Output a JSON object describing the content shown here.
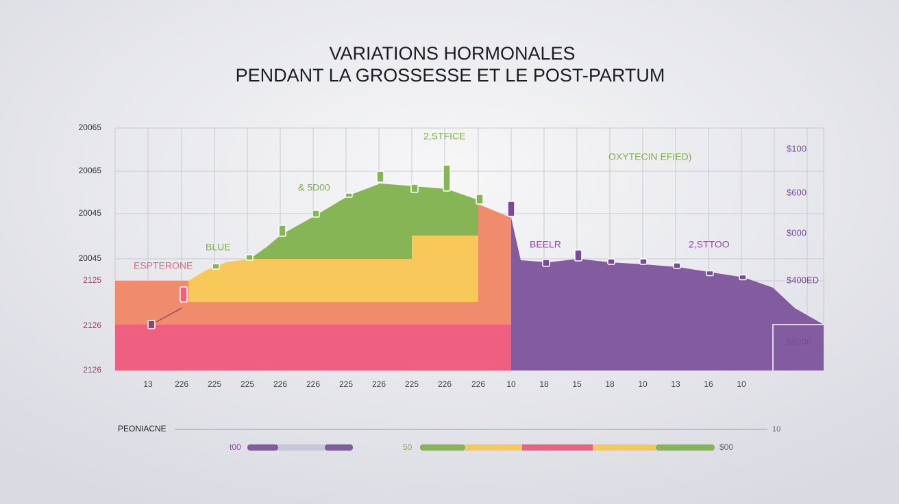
{
  "title": [
    "VARIATIONS HORMONALES",
    "PENDANT LA GROSSESSE ET LE POST-PARTUM"
  ],
  "left_labels": [
    "20065",
    "20065",
    "20045",
    "20045",
    "2125",
    "2126",
    "2126"
  ],
  "right_labels": [
    "$100",
    "$600",
    "$000",
    "$400ED",
    "$9000"
  ],
  "bottom_labels": [
    "13",
    "226",
    "225",
    "225",
    "226",
    "226",
    "225",
    "226",
    "225",
    "226",
    "226",
    "10",
    "18",
    "15",
    "18",
    "10",
    "13",
    "16",
    "10"
  ],
  "annotations": [
    "ESPTERONE",
    "BLUE",
    "& 5D00",
    "2,STFICE",
    "OXYTECIN EFIED)",
    "BEELR",
    "2,STTOO"
  ],
  "legend": {
    "title": "PEONIACNE",
    "end": "10",
    "row_labels": [
      "t00",
      "50",
      "$00"
    ]
  }
}
